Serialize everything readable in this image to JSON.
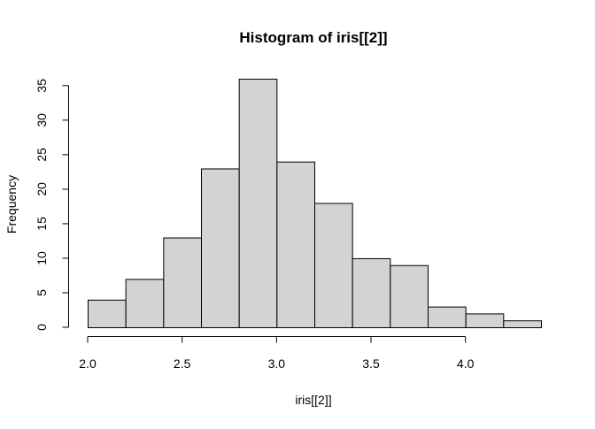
{
  "chart_data": {
    "type": "bar",
    "title": "Histogram of iris[[2]]",
    "xlabel": "iris[[2]]",
    "ylabel": "Frequency",
    "bins": [
      {
        "start": 2.0,
        "end": 2.2,
        "count": 4
      },
      {
        "start": 2.2,
        "end": 2.4,
        "count": 7
      },
      {
        "start": 2.4,
        "end": 2.6,
        "count": 13
      },
      {
        "start": 2.6,
        "end": 2.8,
        "count": 23
      },
      {
        "start": 2.8,
        "end": 3.0,
        "count": 36
      },
      {
        "start": 3.0,
        "end": 3.2,
        "count": 24
      },
      {
        "start": 3.2,
        "end": 3.4,
        "count": 18
      },
      {
        "start": 3.4,
        "end": 3.6,
        "count": 10
      },
      {
        "start": 3.6,
        "end": 3.8,
        "count": 9
      },
      {
        "start": 3.8,
        "end": 4.0,
        "count": 3
      },
      {
        "start": 4.0,
        "end": 4.2,
        "count": 2
      },
      {
        "start": 4.2,
        "end": 4.4,
        "count": 1
      }
    ],
    "x_ticks": [
      "2.0",
      "2.5",
      "3.0",
      "3.5",
      "4.0"
    ],
    "y_ticks": [
      "0",
      "5",
      "10",
      "15",
      "20",
      "25",
      "30",
      "35"
    ],
    "xlim": [
      2.0,
      4.4
    ],
    "ylim": [
      0,
      36
    ],
    "grid": false,
    "bar_fill": "#d3d3d3",
    "bar_stroke": "#000000"
  }
}
